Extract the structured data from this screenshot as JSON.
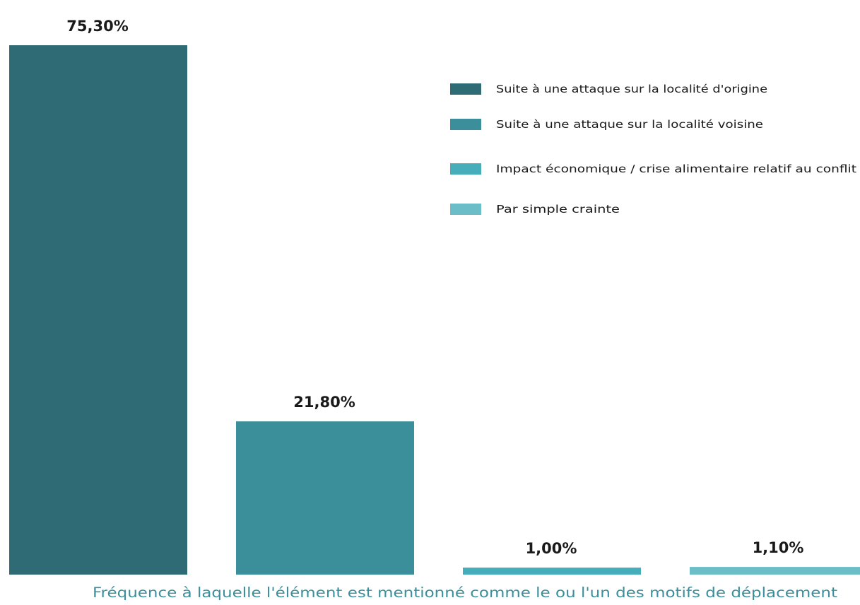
{
  "chart_data": {
    "type": "bar",
    "categories": [
      "Suite à une attaque sur la localité d'origine",
      "Suite à une attaque sur la localité voisine",
      "Impact économique / crise alimentaire relatif au conflit",
      "Par simple crainte"
    ],
    "values": [
      75.3,
      21.8,
      1.0,
      1.1
    ],
    "value_labels": [
      "75,30%",
      "21,80%",
      "1,00%",
      "1,10%"
    ],
    "colors": [
      "#2e6b75",
      "#3a8f9b",
      "#46aebb",
      "#6bbdc8"
    ],
    "xlabel": "Fréquence à laquelle l'élément est mentionné comme le ou l'un des motifs de déplacement",
    "ylabel": "",
    "ylim": [
      0,
      75.3
    ],
    "grid": false,
    "legend_position": "top-right",
    "legend": [
      "Suite à une attaque sur la localité d'origine",
      "Suite à une attaque sur la localité voisine",
      "Impact économique / crise alimentaire relatif au conflit",
      "Par simple crainte"
    ]
  }
}
